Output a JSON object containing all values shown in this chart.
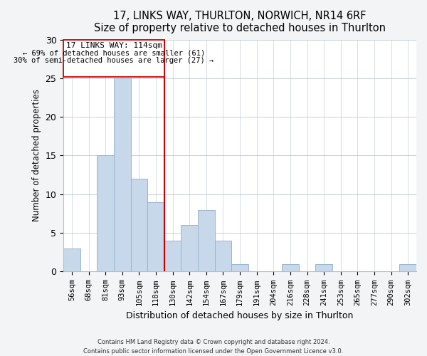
{
  "title": "17, LINKS WAY, THURLTON, NORWICH, NR14 6RF",
  "subtitle": "Size of property relative to detached houses in Thurlton",
  "xlabel": "Distribution of detached houses by size in Thurlton",
  "ylabel": "Number of detached properties",
  "bar_labels": [
    "56sqm",
    "68sqm",
    "81sqm",
    "93sqm",
    "105sqm",
    "118sqm",
    "130sqm",
    "142sqm",
    "154sqm",
    "167sqm",
    "179sqm",
    "191sqm",
    "204sqm",
    "216sqm",
    "228sqm",
    "241sqm",
    "253sqm",
    "265sqm",
    "277sqm",
    "290sqm",
    "302sqm"
  ],
  "bar_heights": [
    3,
    0,
    15,
    25,
    12,
    9,
    4,
    6,
    8,
    4,
    1,
    0,
    0,
    1,
    0,
    1,
    0,
    0,
    0,
    0,
    1
  ],
  "bar_color": "#c8d8eb",
  "bar_edge_color": "#9ab5cc",
  "vline_x_index": 4.5,
  "vline_color": "#cc0000",
  "annotation_title": "17 LINKS WAY: 114sqm",
  "annotation_line1": "← 69% of detached houses are smaller (61)",
  "annotation_line2": "30% of semi-detached houses are larger (27) →",
  "ylim": [
    0,
    30
  ],
  "yticks": [
    0,
    5,
    10,
    15,
    20,
    25,
    30
  ],
  "footer_line1": "Contains HM Land Registry data © Crown copyright and database right 2024.",
  "footer_line2": "Contains public sector information licensed under the Open Government Licence v3.0.",
  "bg_color": "#f2f4f6",
  "plot_bg_color": "#ffffff",
  "grid_color": "#c8d0d8"
}
